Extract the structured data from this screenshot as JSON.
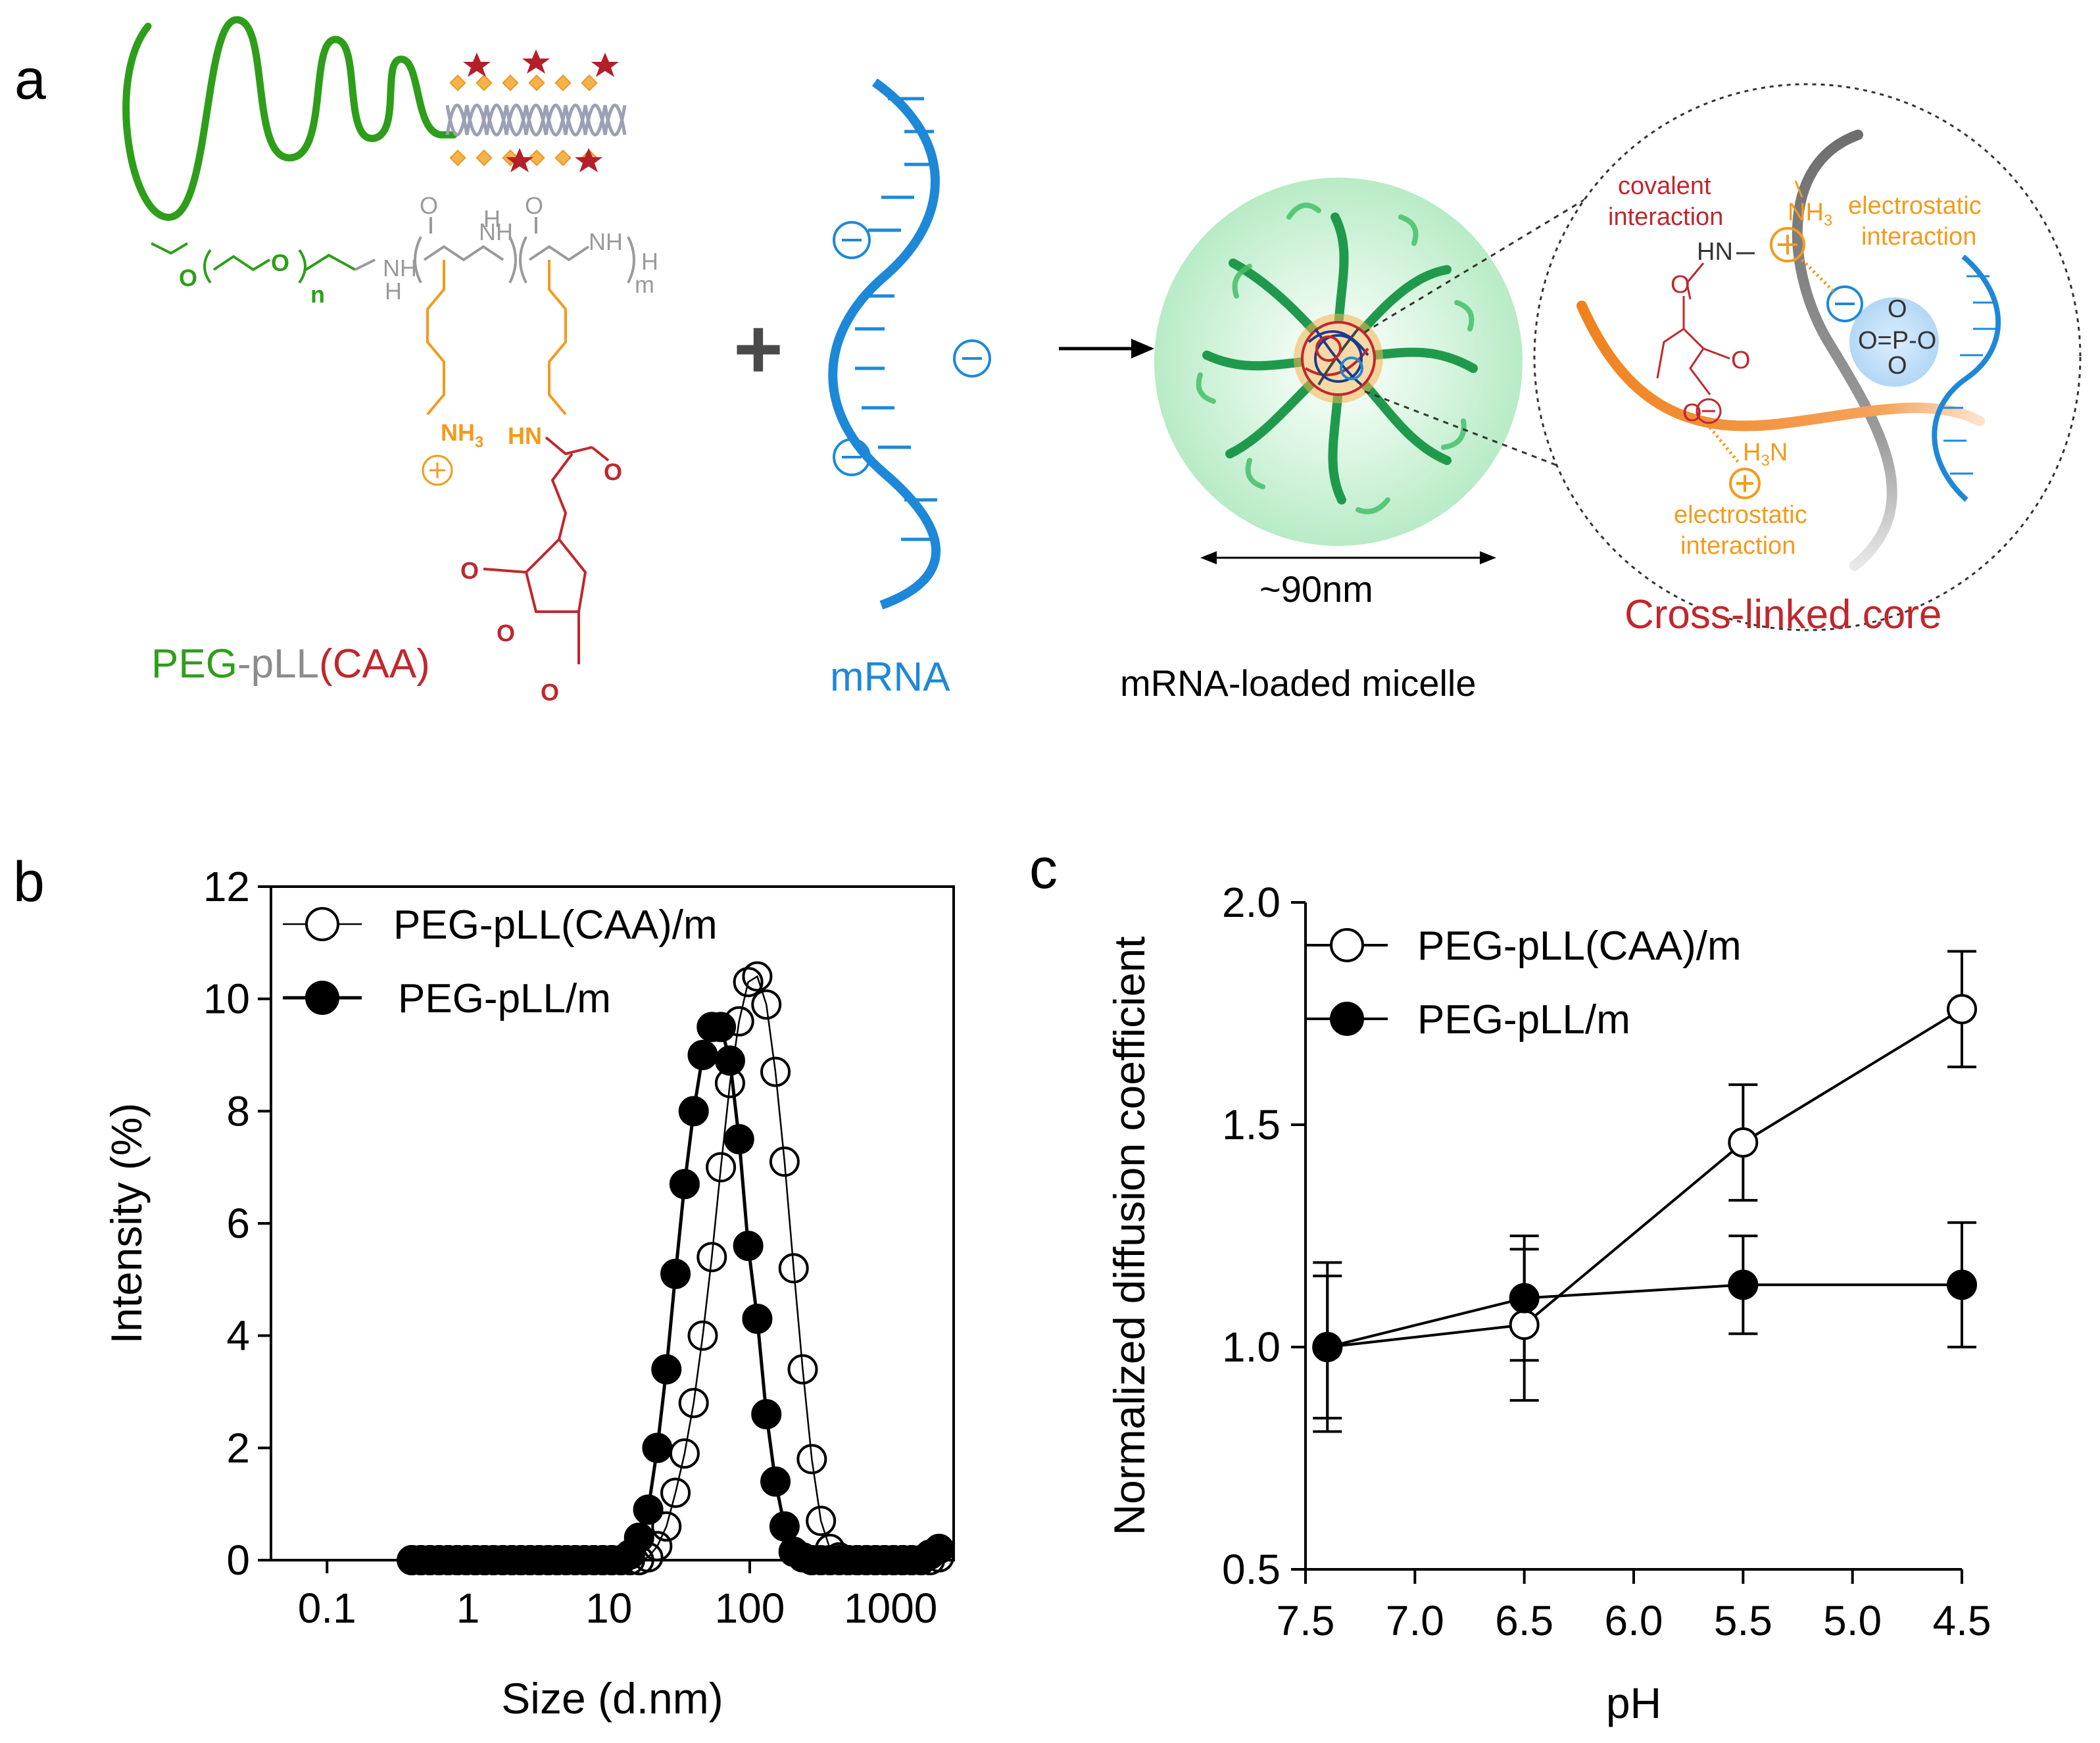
{
  "panel_a": {
    "letter": "a",
    "polymer_label": {
      "peg": "PEG",
      "dash1": "-",
      "pll": "pLL",
      "caa": "(CAA)"
    },
    "chem_text": {
      "n": "n",
      "m": "m",
      "o1": "O",
      "o2": "O",
      "h": "H",
      "nh": "NH",
      "nh3": "NH",
      "nh3_sub": "3",
      "hn": "HN",
      "o_a": "O",
      "o_b": "O",
      "o_c": "O",
      "o_d": "O",
      "o_ring": "O"
    },
    "plus": "+",
    "mrna_label": "mRNA",
    "size_label": "~90nm",
    "micelle_label": "mRNA-loaded micelle",
    "zoom": {
      "covalent_1": "covalent",
      "covalent_2": "interaction",
      "hn": "HN",
      "nh3": "NH",
      "nh3_sub": "3",
      "electrostatic_top_1": "electrostatic",
      "electrostatic_top_2": "interaction",
      "h3n": "H",
      "h3n_sub": "3",
      "h3n_n": "N",
      "electrostatic_bottom_1": "electrostatic",
      "electrostatic_bottom_2": "interaction",
      "phosphate": "O=P-O",
      "o_minus_top": "O",
      "o_minus_bottom": "O",
      "o_left": "O",
      "o_carbonyl": "O",
      "o_minus_label": "O",
      "core_label": "Cross-linked core"
    },
    "colors": {
      "peg": "#2e9e1a",
      "pll": "#8c8c8c",
      "caa": "#c0272d",
      "mrna": "#1e88d8",
      "orange": "#f39a1e",
      "red": "#c0272d"
    }
  },
  "panel_b": {
    "letter": "b",
    "chart_data": {
      "type": "scatter",
      "xscale": "log",
      "xlabel": "Size (d.nm)",
      "ylabel": "Intensity (%)",
      "xlim": [
        0.04,
        2800
      ],
      "ylim": [
        0,
        12
      ],
      "xticks": [
        0.1,
        1,
        10,
        100,
        1000
      ],
      "xtick_labels": [
        "0.1",
        "1",
        "10",
        "100",
        "1000"
      ],
      "yticks": [
        0,
        2,
        4,
        6,
        8,
        10,
        12
      ],
      "ytick_labels": [
        "0",
        "2",
        "4",
        "6",
        "8",
        "10",
        "12"
      ],
      "legend_position": "top-left",
      "x": [
        0.4,
        0.464,
        0.538,
        0.624,
        0.724,
        0.84,
        0.975,
        1.131,
        1.312,
        1.522,
        1.766,
        2.049,
        2.377,
        2.758,
        3.2,
        3.712,
        4.307,
        4.997,
        5.797,
        6.726,
        7.803,
        9.053,
        10.5,
        12.18,
        14.13,
        16.4,
        19.03,
        22.08,
        25.62,
        29.72,
        34.48,
        40.0,
        46.4,
        53.8,
        62.4,
        72.4,
        84.0,
        97.5,
        113.1,
        131.2,
        152.2,
        176.6,
        204.9,
        237.7,
        275.8,
        320.0,
        371.2,
        430.7,
        499.7,
        579.7,
        672.6,
        780.3,
        905.3,
        1050.0,
        1218.0,
        1413.0,
        1640.0,
        1903.0,
        2208.0
      ],
      "series": [
        {
          "name": "PEG-pLL(CAA)/m",
          "marker": "open-circle",
          "values": [
            0,
            0,
            0,
            0,
            0,
            0,
            0,
            0,
            0,
            0,
            0,
            0,
            0,
            0,
            0,
            0,
            0,
            0,
            0,
            0,
            0,
            0,
            0,
            0,
            0,
            0,
            0.05,
            0.25,
            0.6,
            1.2,
            1.9,
            2.8,
            4.0,
            5.4,
            7.0,
            8.5,
            9.6,
            10.3,
            10.4,
            9.9,
            8.7,
            7.1,
            5.2,
            3.4,
            1.8,
            0.7,
            0.2,
            0.05,
            0,
            0,
            0,
            0,
            0,
            0,
            0,
            0,
            0,
            0,
            0.05
          ]
        },
        {
          "name": "PEG-pLL/m",
          "marker": "filled-circle",
          "values": [
            0,
            0,
            0,
            0,
            0,
            0,
            0,
            0,
            0,
            0,
            0,
            0,
            0,
            0,
            0,
            0,
            0,
            0,
            0,
            0,
            0,
            0,
            0,
            0,
            0.1,
            0.4,
            0.9,
            2.0,
            3.4,
            5.1,
            6.7,
            8.0,
            9.0,
            9.5,
            9.5,
            8.9,
            7.5,
            5.6,
            4.3,
            2.6,
            1.4,
            0.6,
            0.15,
            0.05,
            0,
            0,
            0,
            0,
            0,
            0,
            0,
            0,
            0,
            0,
            0,
            0,
            0,
            0.1,
            0.2
          ]
        }
      ]
    }
  },
  "panel_c": {
    "letter": "c",
    "chart_data": {
      "type": "line",
      "xlabel": "pH",
      "ylabel": "Normalized diffusion coefficient",
      "x_reversed": true,
      "xlim": [
        7.5,
        4.5
      ],
      "ylim": [
        0.5,
        2.0
      ],
      "xticks": [
        7.5,
        7.0,
        6.5,
        6.0,
        5.5,
        5.0,
        4.5
      ],
      "xtick_labels": [
        "7.5",
        "7.0",
        "6.5",
        "6.0",
        "5.5",
        "5.0",
        "4.5"
      ],
      "yticks": [
        0.5,
        1.0,
        1.5,
        2.0
      ],
      "ytick_labels": [
        "0.5",
        "1.0",
        "1.5",
        "2.0"
      ],
      "legend_position": "top-left",
      "x": [
        7.4,
        6.5,
        5.5,
        4.5
      ],
      "series": [
        {
          "name": "PEG-pLL(CAA)/m",
          "marker": "open-circle",
          "values": [
            1.0,
            1.05,
            1.46,
            1.76
          ],
          "errors": [
            0.19,
            0.17,
            0.13,
            0.13
          ]
        },
        {
          "name": "PEG-pLL/m",
          "marker": "filled-circle",
          "values": [
            1.0,
            1.11,
            1.14,
            1.14
          ],
          "errors": [
            0.16,
            0.14,
            0.11,
            0.14
          ]
        }
      ]
    }
  }
}
